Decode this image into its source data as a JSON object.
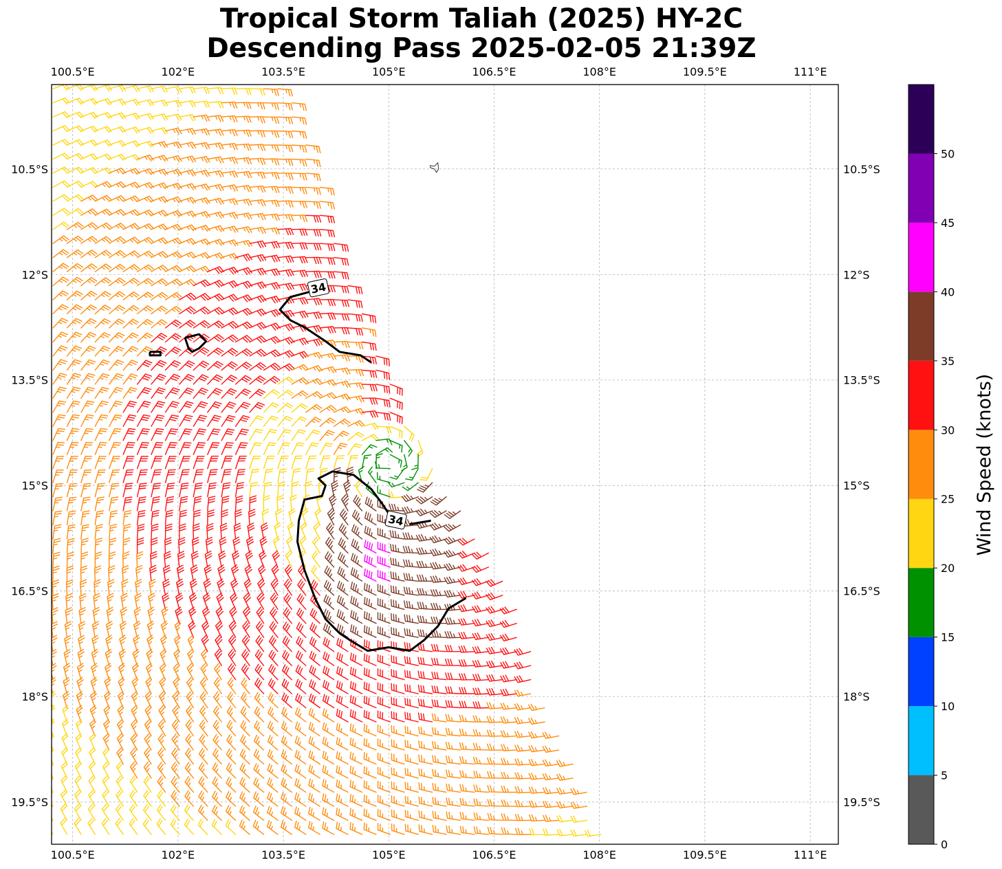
{
  "title": {
    "line1": "Tropical Storm Taliah (2025) HY-2C",
    "line2": "Descending Pass 2025-02-05 21:39Z"
  },
  "map": {
    "lon_range": [
      100.2,
      111.4
    ],
    "lat_range": [
      -20.1,
      -9.3
    ],
    "lon_ticks": [
      {
        "value": 100.5,
        "label": "100.5°E"
      },
      {
        "value": 102.0,
        "label": "102°E"
      },
      {
        "value": 103.5,
        "label": "103.5°E"
      },
      {
        "value": 105.0,
        "label": "105°E"
      },
      {
        "value": 106.5,
        "label": "106.5°E"
      },
      {
        "value": 108.0,
        "label": "108°E"
      },
      {
        "value": 109.5,
        "label": "109.5°E"
      },
      {
        "value": 111.0,
        "label": "111°E"
      }
    ],
    "lat_ticks": [
      {
        "value": -10.5,
        "label": "10.5°S"
      },
      {
        "value": -12.0,
        "label": "12°S"
      },
      {
        "value": -13.5,
        "label": "13.5°S"
      },
      {
        "value": -15.0,
        "label": "15°S"
      },
      {
        "value": -16.5,
        "label": "16.5°S"
      },
      {
        "value": -18.0,
        "label": "18°S"
      },
      {
        "value": -19.5,
        "label": "19.5°S"
      }
    ],
    "gridlines": "dashed",
    "storm_center": {
      "lon": 105.0,
      "lat": -14.7
    },
    "swath_left_edge_lon": 100.2,
    "swath_right_edge": [
      {
        "lat": -9.3,
        "lon": 103.6
      },
      {
        "lat": -12.0,
        "lon": 104.4
      },
      {
        "lat": -14.0,
        "lon": 105.2
      },
      {
        "lat": -16.5,
        "lon": 106.8
      },
      {
        "lat": -18.0,
        "lon": 107.2
      },
      {
        "lat": -19.5,
        "lon": 107.9
      },
      {
        "lat": -20.1,
        "lon": 108.1
      }
    ],
    "island_marker": {
      "lon": 105.65,
      "lat": -10.48
    }
  },
  "contours": {
    "level_label": "34",
    "label_positions": [
      {
        "lon": 104.0,
        "lat": -12.2,
        "rotate": -12
      },
      {
        "lon": 105.1,
        "lat": -15.5,
        "rotate": 12
      }
    ],
    "north_line": [
      [
        103.9,
        -12.24
      ],
      [
        103.6,
        -12.32
      ],
      [
        103.45,
        -12.5
      ],
      [
        103.6,
        -12.65
      ],
      [
        103.8,
        -12.75
      ],
      [
        104.1,
        -12.95
      ],
      [
        104.3,
        -13.1
      ],
      [
        104.6,
        -13.15
      ],
      [
        104.75,
        -13.25
      ]
    ],
    "south_ring": [
      [
        106.1,
        -16.6
      ],
      [
        105.85,
        -16.75
      ],
      [
        105.7,
        -17.0
      ],
      [
        105.5,
        -17.2
      ],
      [
        105.3,
        -17.35
      ],
      [
        105.0,
        -17.3
      ],
      [
        104.7,
        -17.35
      ],
      [
        104.45,
        -17.2
      ],
      [
        104.3,
        -17.1
      ],
      [
        104.1,
        -16.9
      ],
      [
        103.95,
        -16.6
      ],
      [
        103.8,
        -16.2
      ],
      [
        103.7,
        -15.8
      ],
      [
        103.72,
        -15.5
      ],
      [
        103.8,
        -15.2
      ],
      [
        104.05,
        -15.15
      ],
      [
        104.1,
        -15.0
      ],
      [
        104.0,
        -14.9
      ],
      [
        104.2,
        -14.8
      ],
      [
        104.5,
        -14.85
      ],
      [
        104.75,
        -15.05
      ],
      [
        104.9,
        -15.25
      ],
      [
        105.0,
        -15.4
      ]
    ],
    "south_tail": [
      [
        105.3,
        -15.55
      ],
      [
        105.6,
        -15.5
      ]
    ],
    "small_rings": [
      [
        [
          102.1,
          -12.9
        ],
        [
          102.3,
          -12.85
        ],
        [
          102.4,
          -12.95
        ],
        [
          102.3,
          -13.05
        ],
        [
          102.2,
          -13.1
        ],
        [
          102.15,
          -13.05
        ],
        [
          102.1,
          -12.9
        ]
      ],
      [
        [
          101.6,
          -13.1
        ],
        [
          101.75,
          -13.1
        ],
        [
          101.75,
          -13.15
        ],
        [
          101.6,
          -13.15
        ],
        [
          101.6,
          -13.1
        ]
      ]
    ]
  },
  "colorbar": {
    "label": "Wind Speed (knots)",
    "bins": [
      {
        "min": 0,
        "max": 5,
        "color": "#595959"
      },
      {
        "min": 5,
        "max": 10,
        "color": "#00bfff"
      },
      {
        "min": 10,
        "max": 15,
        "color": "#0040ff"
      },
      {
        "min": 15,
        "max": 20,
        "color": "#009100"
      },
      {
        "min": 20,
        "max": 25,
        "color": "#ffd611"
      },
      {
        "min": 25,
        "max": 30,
        "color": "#ff8c0d"
      },
      {
        "min": 30,
        "max": 35,
        "color": "#ff1111"
      },
      {
        "min": 35,
        "max": 40,
        "color": "#7d3c28"
      },
      {
        "min": 40,
        "max": 45,
        "color": "#ff00ff"
      },
      {
        "min": 45,
        "max": 50,
        "color": "#8200b4"
      },
      {
        "min": 50,
        "max": 55,
        "color": "#2d0058"
      }
    ],
    "ticks": [
      "0",
      "5",
      "10",
      "15",
      "20",
      "25",
      "30",
      "35",
      "40",
      "45",
      "50"
    ]
  }
}
